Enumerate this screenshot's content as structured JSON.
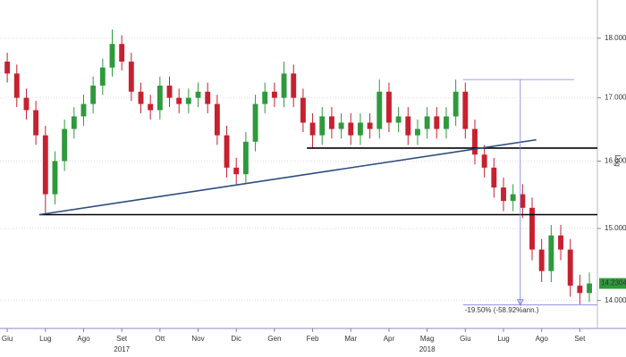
{
  "chart_data": {
    "type": "candlestick",
    "log_scale": true,
    "grid": true,
    "scale_label": "Log",
    "up_color": "#2e9a3c",
    "down_color": "#c8202f",
    "x": [
      0,
      0.25,
      0.5,
      0.75,
      1,
      1.25,
      1.5,
      1.75,
      2,
      2.25,
      2.5,
      2.75,
      3,
      3.25,
      3.5,
      3.75,
      4,
      4.25,
      4.5,
      4.75,
      5,
      5.25,
      5.5,
      5.75,
      6,
      6.25,
      6.5,
      6.75,
      7,
      7.25,
      7.5,
      7.75,
      8,
      8.25,
      8.5,
      8.75,
      9,
      9.25,
      9.5,
      9.75,
      10,
      10.25,
      10.5,
      10.75,
      11,
      11.25,
      11.5,
      11.75,
      12,
      12.25,
      12.5,
      12.75,
      13,
      13.25,
      13.5,
      13.75,
      14,
      14.25,
      14.5,
      14.75,
      15,
      15.25
    ],
    "open": [
      17.6,
      17.4,
      17.0,
      16.8,
      16.4,
      15.5,
      16.0,
      16.5,
      16.7,
      16.9,
      17.2,
      17.5,
      17.9,
      17.6,
      17.1,
      16.9,
      16.8,
      17.2,
      17.0,
      16.9,
      17.0,
      17.1,
      16.9,
      16.4,
      15.9,
      15.8,
      16.3,
      16.9,
      17.1,
      17.0,
      17.4,
      17.0,
      16.6,
      16.4,
      16.7,
      16.5,
      16.6,
      16.4,
      16.6,
      16.5,
      17.1,
      16.6,
      16.7,
      16.4,
      16.5,
      16.7,
      16.5,
      16.7,
      17.1,
      16.5,
      16.1,
      15.9,
      15.6,
      15.4,
      15.5,
      15.3,
      14.7,
      14.4,
      14.9,
      14.7,
      14.2,
      14.1
    ],
    "high": [
      17.75,
      17.55,
      17.15,
      16.95,
      16.55,
      16.15,
      16.65,
      16.85,
      17.05,
      17.35,
      17.65,
      18.15,
      18.05,
      17.75,
      17.25,
      17.05,
      17.35,
      17.35,
      17.15,
      17.15,
      17.25,
      17.25,
      17.05,
      16.55,
      16.05,
      16.45,
      17.05,
      17.25,
      17.25,
      17.6,
      17.55,
      17.15,
      16.75,
      16.85,
      16.85,
      16.75,
      16.75,
      16.75,
      16.75,
      17.3,
      17.25,
      16.85,
      16.85,
      16.65,
      16.85,
      16.85,
      16.85,
      17.3,
      17.25,
      16.65,
      16.25,
      16.05,
      15.75,
      15.65,
      15.65,
      15.45,
      14.85,
      15.05,
      15.05,
      14.85,
      14.35,
      14.38
    ],
    "low": [
      17.25,
      16.85,
      16.65,
      16.25,
      15.2,
      15.35,
      15.85,
      16.35,
      16.55,
      16.75,
      17.05,
      17.35,
      17.45,
      16.95,
      16.75,
      16.65,
      16.65,
      16.85,
      16.75,
      16.75,
      16.85,
      16.75,
      16.25,
      15.75,
      15.65,
      15.65,
      16.15,
      16.75,
      16.85,
      16.85,
      16.85,
      16.45,
      16.2,
      16.25,
      16.35,
      16.35,
      16.25,
      16.25,
      16.35,
      16.35,
      16.45,
      16.45,
      16.25,
      16.25,
      16.35,
      16.35,
      16.35,
      16.55,
      16.35,
      15.95,
      15.75,
      15.45,
      15.25,
      15.25,
      15.15,
      14.55,
      14.25,
      14.25,
      14.55,
      14.05,
      13.95,
      13.98
    ],
    "close": [
      17.4,
      17.0,
      16.8,
      16.4,
      15.5,
      16.0,
      16.5,
      16.7,
      16.9,
      17.2,
      17.5,
      17.9,
      17.6,
      17.1,
      16.9,
      16.8,
      17.2,
      17.0,
      16.9,
      17.0,
      17.1,
      16.9,
      16.4,
      15.9,
      15.8,
      16.3,
      16.9,
      17.1,
      17.0,
      17.4,
      17.0,
      16.6,
      16.4,
      16.7,
      16.5,
      16.6,
      16.4,
      16.6,
      16.5,
      17.1,
      16.6,
      16.7,
      16.4,
      16.5,
      16.7,
      16.5,
      16.7,
      17.1,
      16.5,
      16.1,
      15.9,
      15.6,
      15.4,
      15.5,
      15.3,
      14.7,
      14.4,
      14.9,
      14.7,
      14.2,
      14.1,
      14.23
    ],
    "xlim": [
      -0.19,
      15.46
    ],
    "xticks": [
      {
        "value": 0,
        "label": "Giu"
      },
      {
        "value": 1,
        "label": "Lug"
      },
      {
        "value": 2,
        "label": "Ago"
      },
      {
        "value": 3,
        "label": "Set"
      },
      {
        "value": 4,
        "label": "Ott"
      },
      {
        "value": 5,
        "label": "Nov"
      },
      {
        "value": 6,
        "label": "Dic"
      },
      {
        "value": 7,
        "label": "Gen"
      },
      {
        "value": 8,
        "label": "Feb"
      },
      {
        "value": 9,
        "label": "Mar"
      },
      {
        "value": 10,
        "label": "Apr"
      },
      {
        "value": 11,
        "label": "Mag"
      },
      {
        "value": 12,
        "label": "Giu"
      },
      {
        "value": 13,
        "label": "Lug"
      },
      {
        "value": 14,
        "label": "Ago"
      },
      {
        "value": 15,
        "label": "Set"
      }
    ],
    "year_labels": [
      {
        "value": 3,
        "label": "2017"
      },
      {
        "value": 11,
        "label": "2018"
      }
    ],
    "ylim": [
      13.63,
      18.67
    ],
    "yticks": [
      {
        "value": 14,
        "label": "14.0000"
      },
      {
        "value": 15,
        "label": "15.0000"
      },
      {
        "value": 16,
        "label": "16.0000"
      },
      {
        "value": 17,
        "label": "17.0000"
      },
      {
        "value": 18,
        "label": "18.0000"
      }
    ],
    "last_price": 14.2304,
    "last_price_color": "#2e9a3c",
    "trendlines": [
      {
        "x": [
          0.84,
          15.46
        ],
        "y": [
          15.2,
          15.2
        ],
        "color": "#000000"
      },
      {
        "x": [
          7.85,
          15.46
        ],
        "y": [
          16.2,
          16.2
        ],
        "color": "#000000"
      },
      {
        "x": [
          0.84,
          13.86
        ],
        "y": [
          15.2,
          16.33
        ],
        "color": "#2b4c7e"
      },
      {
        "x": [
          11.94,
          14.85
        ],
        "y": [
          17.3,
          17.3
        ],
        "color": "#8080d8"
      },
      {
        "x": [
          13.44,
          13.44
        ],
        "y": [
          17.3,
          13.94
        ],
        "color": "#8080d8"
      },
      {
        "x": [
          11.94,
          15.46
        ],
        "y": [
          13.94,
          13.94
        ],
        "color": "#8080d8"
      }
    ],
    "annotation": "-19.50% (-58.92%ann.)"
  }
}
